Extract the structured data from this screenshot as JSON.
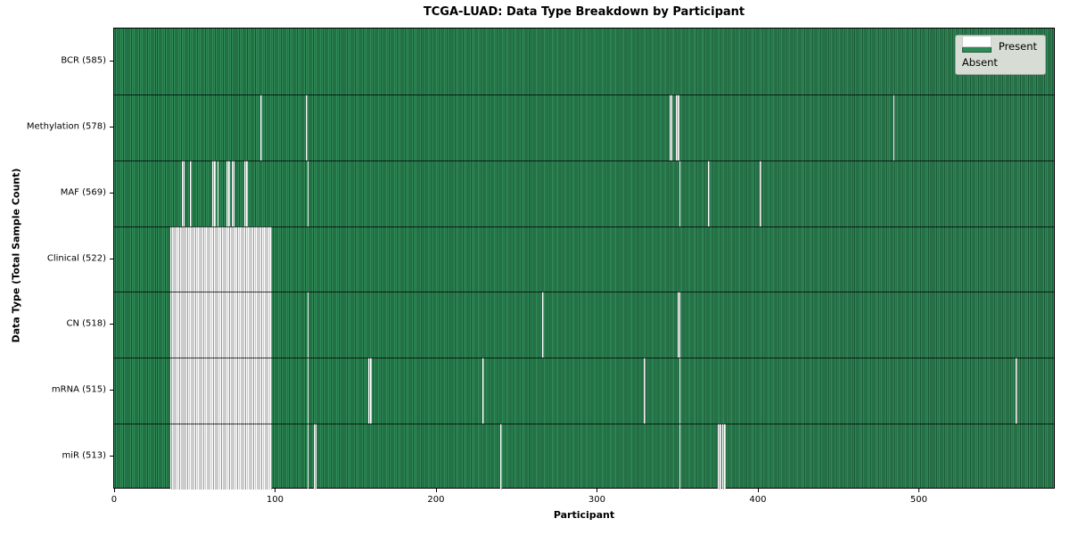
{
  "figure": {
    "title": "TCGA-LUAD: Data Type Breakdown by Participant",
    "xlabel": "Participant",
    "ylabel": "Data Type (Total Sample Count)"
  },
  "legend": {
    "present_label": "Present",
    "absent_label": "Absent"
  },
  "colors": {
    "present_fill": "#2e8b57",
    "present_edge": "#1c5434",
    "absent_fill": "#ffffff",
    "absent_edge": "#999999",
    "legend_bg": "#d7dcd4",
    "legend_border": "#a8aca8",
    "axis": "#000000"
  },
  "chart_data": {
    "type": "heatmap",
    "title": "TCGA-LUAD: Data Type Breakdown by Participant",
    "xlabel": "Participant",
    "ylabel": "Data Type (Total Sample Count)",
    "legend_entries": [
      "Present",
      "Absent"
    ],
    "legend_position": "upper right",
    "grid": false,
    "participants_total": 585,
    "x_ticks": [
      0,
      100,
      200,
      300,
      400,
      500
    ],
    "x_range": [
      0,
      584
    ],
    "rows": [
      {
        "name": "BCR",
        "total": 585,
        "tick_label": "BCR (585)",
        "absent_ranges": []
      },
      {
        "name": "Methylation",
        "total": 578,
        "tick_label": "Methylation (578)",
        "absent_ranges": [
          [
            91,
            91
          ],
          [
            119,
            119
          ],
          [
            345,
            346
          ],
          [
            349,
            350
          ],
          [
            484,
            484
          ]
        ]
      },
      {
        "name": "MAF",
        "total": 569,
        "tick_label": "MAF (569)",
        "absent_ranges": [
          [
            42,
            43
          ],
          [
            47,
            47
          ],
          [
            61,
            62
          ],
          [
            64,
            64
          ],
          [
            70,
            71
          ],
          [
            73,
            74
          ],
          [
            81,
            82
          ],
          [
            120,
            120
          ],
          [
            351,
            351
          ],
          [
            369,
            369
          ],
          [
            401,
            401
          ]
        ]
      },
      {
        "name": "Clinical",
        "total": 522,
        "tick_label": "Clinical (522)",
        "absent_ranges": [
          [
            35,
            97
          ]
        ]
      },
      {
        "name": "CN",
        "total": 518,
        "tick_label": "CN (518)",
        "absent_ranges": [
          [
            35,
            97
          ],
          [
            120,
            120
          ],
          [
            266,
            266
          ],
          [
            350,
            351
          ]
        ]
      },
      {
        "name": "mRNA",
        "total": 515,
        "tick_label": "mRNA (515)",
        "absent_ranges": [
          [
            35,
            97
          ],
          [
            120,
            120
          ],
          [
            158,
            159
          ],
          [
            229,
            229
          ],
          [
            329,
            329
          ],
          [
            351,
            351
          ],
          [
            560,
            560
          ]
        ]
      },
      {
        "name": "miR",
        "total": 513,
        "tick_label": "miR (513)",
        "absent_ranges": [
          [
            35,
            97
          ],
          [
            120,
            120
          ],
          [
            124,
            125
          ],
          [
            240,
            240
          ],
          [
            351,
            351
          ],
          [
            375,
            376
          ],
          [
            378,
            379
          ]
        ]
      }
    ]
  }
}
